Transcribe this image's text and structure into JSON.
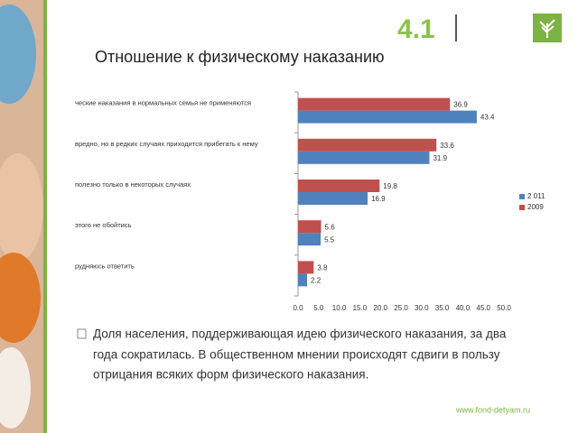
{
  "slide": {
    "number": "4.1",
    "bullet_lines": [
      "Доля населения, поддерживающая идею физического наказания, за два",
      "года сократилась. В общественном мнении происходят сдвиги в пользу",
      "отрицания всяких форм физического наказания."
    ],
    "url": "www.fond-detyam.ru"
  },
  "chart_data": {
    "type": "hbar",
    "title": "Отношение к физическому наказанию",
    "categories": [
      "ческие наказания в нормальных семья не применяются",
      "вредно,  но в редких случаях приходится прибегать к нему",
      "полезно только в некоторых случаях",
      "этого не обойтись",
      "рудняюсь ответить"
    ],
    "series": [
      {
        "name": "2 011",
        "color": "#4f81bd",
        "values": [
          43.4,
          31.9,
          16.9,
          5.5,
          2.2
        ]
      },
      {
        "name": "2009",
        "color": "#c0504d",
        "values": [
          36.9,
          33.6,
          19.8,
          5.6,
          3.8
        ]
      }
    ],
    "xlim": [
      0,
      50
    ],
    "xticks": [
      {
        "value": 0,
        "label": "0.0"
      },
      {
        "value": 5,
        "label": "5.0"
      },
      {
        "value": 10,
        "label": "10.0"
      },
      {
        "value": 15,
        "label": "15.0"
      },
      {
        "value": 20,
        "label": "20.0"
      },
      {
        "value": 25,
        "label": "25.0"
      },
      {
        "value": 30,
        "label": "30.0"
      },
      {
        "value": 35,
        "label": "35.0"
      },
      {
        "value": 40,
        "label": "40.0"
      },
      {
        "value": 45,
        "label": "45.0"
      },
      {
        "value": 50,
        "label": "50.0"
      }
    ],
    "legend": "right"
  }
}
